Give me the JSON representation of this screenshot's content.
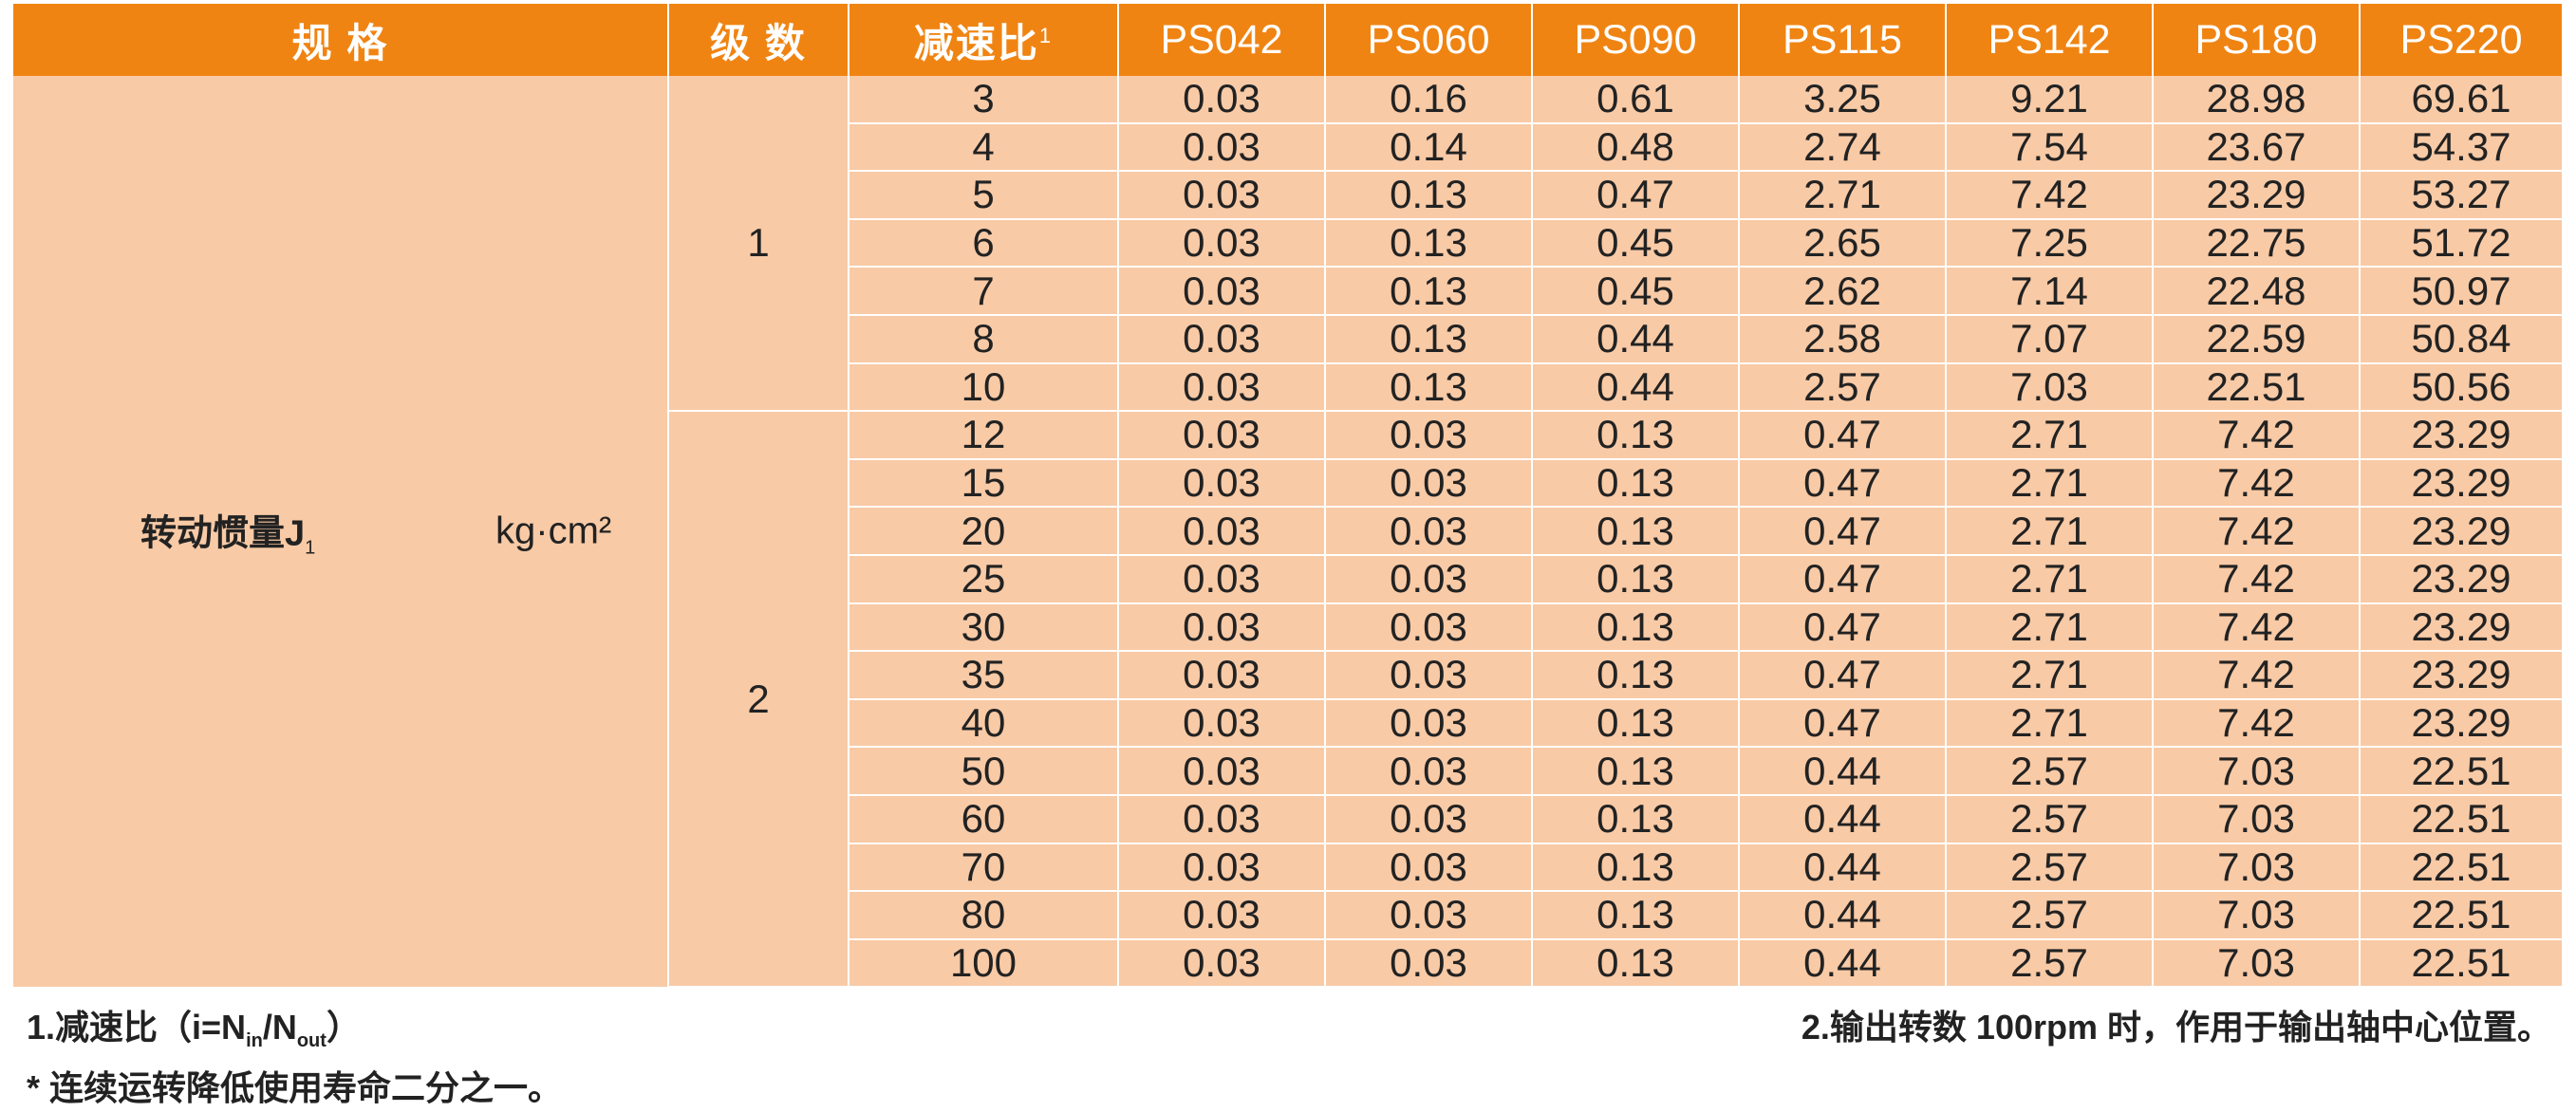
{
  "header": {
    "spec": "规 格",
    "stage": "级 数",
    "ratio": "减速比",
    "ratio_sup": "1",
    "models": [
      "PS042",
      "PS060",
      "PS090",
      "PS115",
      "PS142",
      "PS180",
      "PS220"
    ]
  },
  "spec": {
    "name": "转动惯量J",
    "name_sub": "1",
    "unit": "kg·cm²"
  },
  "stages": [
    {
      "label": "1",
      "rows": [
        {
          "ratio": "3",
          "values": [
            "0.03",
            "0.16",
            "0.61",
            "3.25",
            "9.21",
            "28.98",
            "69.61"
          ]
        },
        {
          "ratio": "4",
          "values": [
            "0.03",
            "0.14",
            "0.48",
            "2.74",
            "7.54",
            "23.67",
            "54.37"
          ]
        },
        {
          "ratio": "5",
          "values": [
            "0.03",
            "0.13",
            "0.47",
            "2.71",
            "7.42",
            "23.29",
            "53.27"
          ]
        },
        {
          "ratio": "6",
          "values": [
            "0.03",
            "0.13",
            "0.45",
            "2.65",
            "7.25",
            "22.75",
            "51.72"
          ]
        },
        {
          "ratio": "7",
          "values": [
            "0.03",
            "0.13",
            "0.45",
            "2.62",
            "7.14",
            "22.48",
            "50.97"
          ]
        },
        {
          "ratio": "8",
          "values": [
            "0.03",
            "0.13",
            "0.44",
            "2.58",
            "7.07",
            "22.59",
            "50.84"
          ]
        },
        {
          "ratio": "10",
          "values": [
            "0.03",
            "0.13",
            "0.44",
            "2.57",
            "7.03",
            "22.51",
            "50.56"
          ]
        }
      ]
    },
    {
      "label": "2",
      "rows": [
        {
          "ratio": "12",
          "values": [
            "0.03",
            "0.03",
            "0.13",
            "0.47",
            "2.71",
            "7.42",
            "23.29"
          ]
        },
        {
          "ratio": "15",
          "values": [
            "0.03",
            "0.03",
            "0.13",
            "0.47",
            "2.71",
            "7.42",
            "23.29"
          ]
        },
        {
          "ratio": "20",
          "values": [
            "0.03",
            "0.03",
            "0.13",
            "0.47",
            "2.71",
            "7.42",
            "23.29"
          ]
        },
        {
          "ratio": "25",
          "values": [
            "0.03",
            "0.03",
            "0.13",
            "0.47",
            "2.71",
            "7.42",
            "23.29"
          ]
        },
        {
          "ratio": "30",
          "values": [
            "0.03",
            "0.03",
            "0.13",
            "0.47",
            "2.71",
            "7.42",
            "23.29"
          ]
        },
        {
          "ratio": "35",
          "values": [
            "0.03",
            "0.03",
            "0.13",
            "0.47",
            "2.71",
            "7.42",
            "23.29"
          ]
        },
        {
          "ratio": "40",
          "values": [
            "0.03",
            "0.03",
            "0.13",
            "0.47",
            "2.71",
            "7.42",
            "23.29"
          ]
        },
        {
          "ratio": "50",
          "values": [
            "0.03",
            "0.03",
            "0.13",
            "0.44",
            "2.57",
            "7.03",
            "22.51"
          ]
        },
        {
          "ratio": "60",
          "values": [
            "0.03",
            "0.03",
            "0.13",
            "0.44",
            "2.57",
            "7.03",
            "22.51"
          ]
        },
        {
          "ratio": "70",
          "values": [
            "0.03",
            "0.03",
            "0.13",
            "0.44",
            "2.57",
            "7.03",
            "22.51"
          ]
        },
        {
          "ratio": "80",
          "values": [
            "0.03",
            "0.03",
            "0.13",
            "0.44",
            "2.57",
            "7.03",
            "22.51"
          ]
        },
        {
          "ratio": "100",
          "values": [
            "0.03",
            "0.03",
            "0.13",
            "0.44",
            "2.57",
            "7.03",
            "22.51"
          ]
        }
      ]
    }
  ],
  "notes": {
    "note1_prefix": "1.减速比（i=N",
    "note1_in": "in",
    "note1_mid": "/N",
    "note1_out": "out",
    "note1_suffix": "）",
    "note_star": "* 连续运转降低使用寿命二分之一。",
    "note2": "2.输出转数 100rpm 时，作用于输出轴中心位置。"
  },
  "colors": {
    "header_bg": "#f08412",
    "cell_bg": "#f8caa6",
    "stage_divider": "#d9534f"
  }
}
